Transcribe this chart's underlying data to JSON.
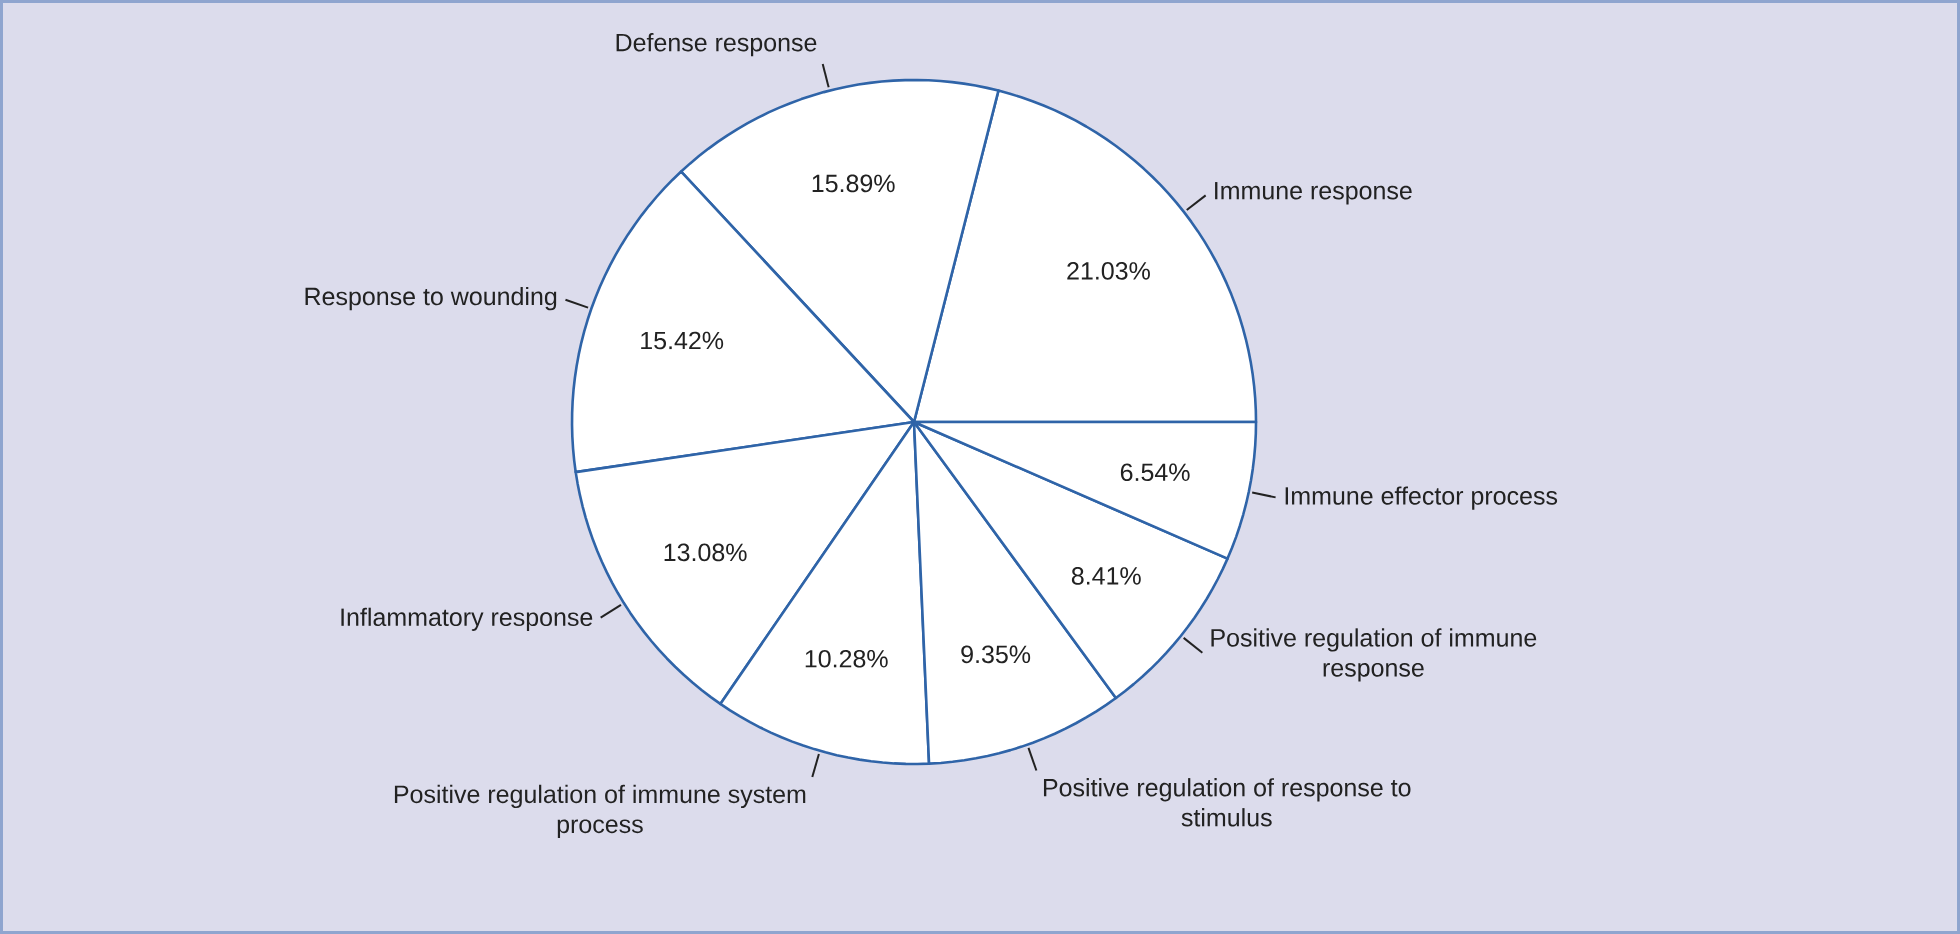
{
  "chart_data": {
    "type": "pie",
    "categories": [
      "Immune response",
      "Defense response",
      "Response to wounding",
      "Inflammatory response",
      "Positive regulation of immune system process",
      "Positive regulation of response to stimulus",
      "Positive regulation of immune response",
      "Immune effector process"
    ],
    "values": [
      21.03,
      15.89,
      15.42,
      13.08,
      10.28,
      9.35,
      8.41,
      6.54
    ],
    "value_labels": [
      "21.03%",
      "15.89%",
      "15.42%",
      "13.08%",
      "10.28%",
      "9.35%",
      "8.41%",
      "6.54%"
    ],
    "colors": [
      "#ffffff",
      "#ffffff",
      "#ffffff",
      "#ffffff",
      "#ffffff",
      "#ffffff",
      "#ffffff",
      "#ffffff"
    ]
  }
}
